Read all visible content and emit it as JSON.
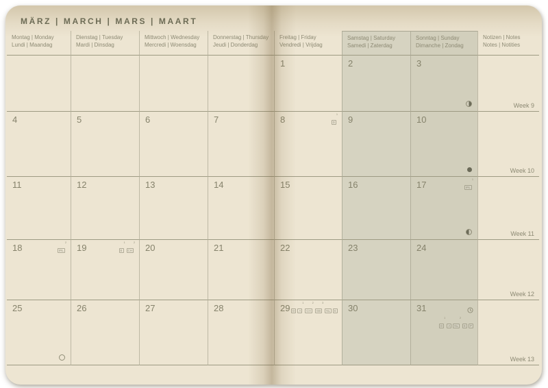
{
  "calendar": {
    "title": "MÄRZ | MARCH | MARS | MAART",
    "day_headers": [
      {
        "line1": "Montag | Monday",
        "line2": "Lundi | Maandag",
        "weekend": false
      },
      {
        "line1": "Dienstag | Tuesday",
        "line2": "Mardi | Dinsdag",
        "weekend": false
      },
      {
        "line1": "Mittwoch | Wednesday",
        "line2": "Mercredi | Woensdag",
        "weekend": false
      },
      {
        "line1": "Donnerstag | Thursday",
        "line2": "Jeudi | Donderdag",
        "weekend": false
      },
      {
        "line1": "Freitag | Friday",
        "line2": "Vendredi | Vrijdag",
        "weekend": false
      },
      {
        "line1": "Samstag | Saturday",
        "line2": "Samedi | Zaterdag",
        "weekend": true
      },
      {
        "line1": "Sonntag | Sunday",
        "line2": "Dimanche | Zondag",
        "weekend": true
      }
    ],
    "notes_header": {
      "line1": "Notizen | Notes",
      "line2": "Notes | Notities"
    },
    "rows": [
      {
        "week_label": "Week 9",
        "cells": [
          {
            "day": ""
          },
          {
            "day": ""
          },
          {
            "day": ""
          },
          {
            "day": ""
          },
          {
            "day": "1"
          },
          {
            "day": "2"
          },
          {
            "day": "3",
            "moon": "last-quarter"
          }
        ]
      },
      {
        "week_label": "Week 10",
        "cells": [
          {
            "day": "4"
          },
          {
            "day": "5"
          },
          {
            "day": "6"
          },
          {
            "day": "7"
          },
          {
            "day": "8",
            "badges": [
              {
                "code": "D",
                "sup": "1"
              }
            ]
          },
          {
            "day": "9"
          },
          {
            "day": "10",
            "moon": "new"
          }
        ]
      },
      {
        "week_label": "Week 11",
        "cells": [
          {
            "day": "11"
          },
          {
            "day": "12"
          },
          {
            "day": "13"
          },
          {
            "day": "14"
          },
          {
            "day": "15"
          },
          {
            "day": "16"
          },
          {
            "day": "17",
            "badges": [
              {
                "code": "IRL",
                "sup": "1"
              }
            ],
            "moon": "first-quarter"
          }
        ]
      },
      {
        "week_label": "Week 12",
        "cells": [
          {
            "day": "18",
            "badges": [
              {
                "code": "IRL",
                "sup": "2"
              }
            ]
          },
          {
            "day": "19",
            "badges": [
              {
                "code": "E",
                "sup": "1"
              },
              {
                "code": "CH",
                "sup": "2"
              }
            ]
          },
          {
            "day": "20"
          },
          {
            "day": "21"
          },
          {
            "day": "22"
          },
          {
            "day": "23"
          },
          {
            "day": "24"
          }
        ]
      },
      {
        "week_label": "Week 13",
        "cells": [
          {
            "day": "25",
            "moon": "full"
          },
          {
            "day": "26"
          },
          {
            "day": "27"
          },
          {
            "day": "28"
          },
          {
            "day": "29",
            "badges": [
              {
                "code": "D"
              },
              {
                "code": "A",
                "sup": "1"
              },
              {
                "code": "CH",
                "sup": "2"
              },
              {
                "code": "GB",
                "sup": "3"
              },
              {
                "code": "NL"
              },
              {
                "code": "E"
              }
            ]
          },
          {
            "day": "30"
          },
          {
            "day": "31",
            "clock": true,
            "badges": [
              {
                "code": "D",
                "sup": "1"
              },
              {
                "code": "A"
              },
              {
                "code": "NL",
                "sup": "2"
              },
              {
                "code": "E"
              },
              {
                "code": "P"
              }
            ]
          }
        ]
      }
    ],
    "icons": {
      "moon_new": "new-moon-icon",
      "moon_first_quarter": "first-quarter-moon-icon",
      "moon_last_quarter": "last-quarter-moon-icon",
      "moon_full": "full-moon-icon",
      "clock": "dst-clock-icon"
    },
    "colors": {
      "page": "#ede5d2",
      "weekend_saturday": "#d6d3c1",
      "weekend_sunday": "#d2cfbc",
      "grid_line": "#9d9a83",
      "column_line": "#b3b09c",
      "text": "#85826b",
      "title_text": "#6c6b55"
    }
  }
}
